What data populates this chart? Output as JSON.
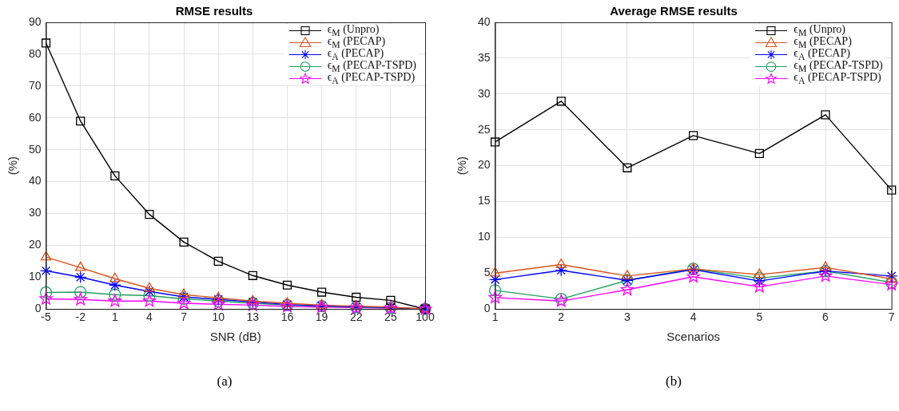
{
  "chart_data": [
    {
      "type": "line",
      "title": "RMSE results",
      "xlabel": "SNR (dB)",
      "ylabel": "(%)",
      "categories": [
        "-5",
        "-2",
        "1",
        "4",
        "7",
        "10",
        "13",
        "16",
        "19",
        "22",
        "25",
        "100"
      ],
      "ylim": [
        0,
        90
      ],
      "yticks": [
        0,
        10,
        20,
        30,
        40,
        50,
        60,
        70,
        80,
        90
      ],
      "grid": true,
      "legend": "top right",
      "annotations": [
        "(a)"
      ],
      "series": [
        {
          "name": "ϵ$_{M}$ (Unpro)",
          "color": "#000000",
          "marker": "square",
          "values": [
            83.5,
            59,
            41.8,
            29.7,
            21,
            15,
            10.5,
            7.5,
            5.3,
            3.7,
            2.7,
            0
          ]
        },
        {
          "name": "ϵ$_{M}$ (PECAP)",
          "color": "#d95319",
          "marker": "triangle",
          "values": [
            16.3,
            13,
            9.5,
            6.5,
            4.5,
            3.5,
            2.5,
            1.8,
            1.2,
            0.9,
            0.6,
            0
          ]
        },
        {
          "name": "ϵ$_{A}$ (PECAP)",
          "color": "#0000ff",
          "marker": "cross",
          "values": [
            12,
            10,
            7.5,
            5.5,
            3.8,
            3,
            2.2,
            1.4,
            1,
            0.7,
            0.5,
            0
          ]
        },
        {
          "name": "ϵ$_{M}$ (PECAP-TSPD)",
          "color": "#20a060",
          "marker": "circle",
          "values": [
            5.2,
            5.3,
            4.5,
            4.2,
            3.2,
            2.5,
            1.8,
            1.2,
            0.9,
            0.6,
            0.4,
            0
          ]
        },
        {
          "name": "ϵ$_{A}$ (PECAP-TSPD)",
          "color": "#ff00ff",
          "marker": "star",
          "values": [
            3.2,
            3,
            2.5,
            2.5,
            1.8,
            1.5,
            1.2,
            0.8,
            0.6,
            0.4,
            0.3,
            0
          ]
        }
      ]
    },
    {
      "type": "line",
      "title": "Average RMSE results",
      "xlabel": "Scenarios",
      "ylabel": "(%)",
      "x": [
        1,
        2,
        3,
        4,
        5,
        6,
        7
      ],
      "xlim": [
        1,
        7
      ],
      "xticks": [
        1,
        2,
        3,
        4,
        5,
        6,
        7
      ],
      "ylim": [
        0,
        40
      ],
      "yticks": [
        0,
        5,
        10,
        15,
        20,
        25,
        30,
        35,
        40
      ],
      "grid": true,
      "legend": "top right",
      "annotations": [
        "(b)"
      ],
      "series": [
        {
          "name": "ϵ$_{M}$ (Unpro)",
          "color": "#000000",
          "marker": "square",
          "values": [
            23.3,
            29,
            19.7,
            24.2,
            21.7,
            27.1,
            16.6
          ]
        },
        {
          "name": "ϵ$_{M}$ (PECAP)",
          "color": "#d95319",
          "marker": "triangle",
          "values": [
            5,
            6.2,
            4.6,
            5.6,
            4.8,
            5.8,
            4.2
          ]
        },
        {
          "name": "ϵ$_{A}$ (PECAP)",
          "color": "#0000ff",
          "marker": "cross",
          "values": [
            4.1,
            5.4,
            4,
            5.5,
            3.9,
            5.3,
            4.6
          ]
        },
        {
          "name": "ϵ$_{M}$ (PECAP-TSPD)",
          "color": "#20a060",
          "marker": "circle",
          "values": [
            2.6,
            1.4,
            4,
            5.6,
            4.3,
            5.3,
            3.7
          ]
        },
        {
          "name": "ϵ$_{A}$ (PECAP-TSPD)",
          "color": "#ff00ff",
          "marker": "star",
          "values": [
            1.6,
            1.1,
            2.7,
            4.5,
            3.1,
            4.6,
            3.4
          ]
        }
      ]
    }
  ]
}
